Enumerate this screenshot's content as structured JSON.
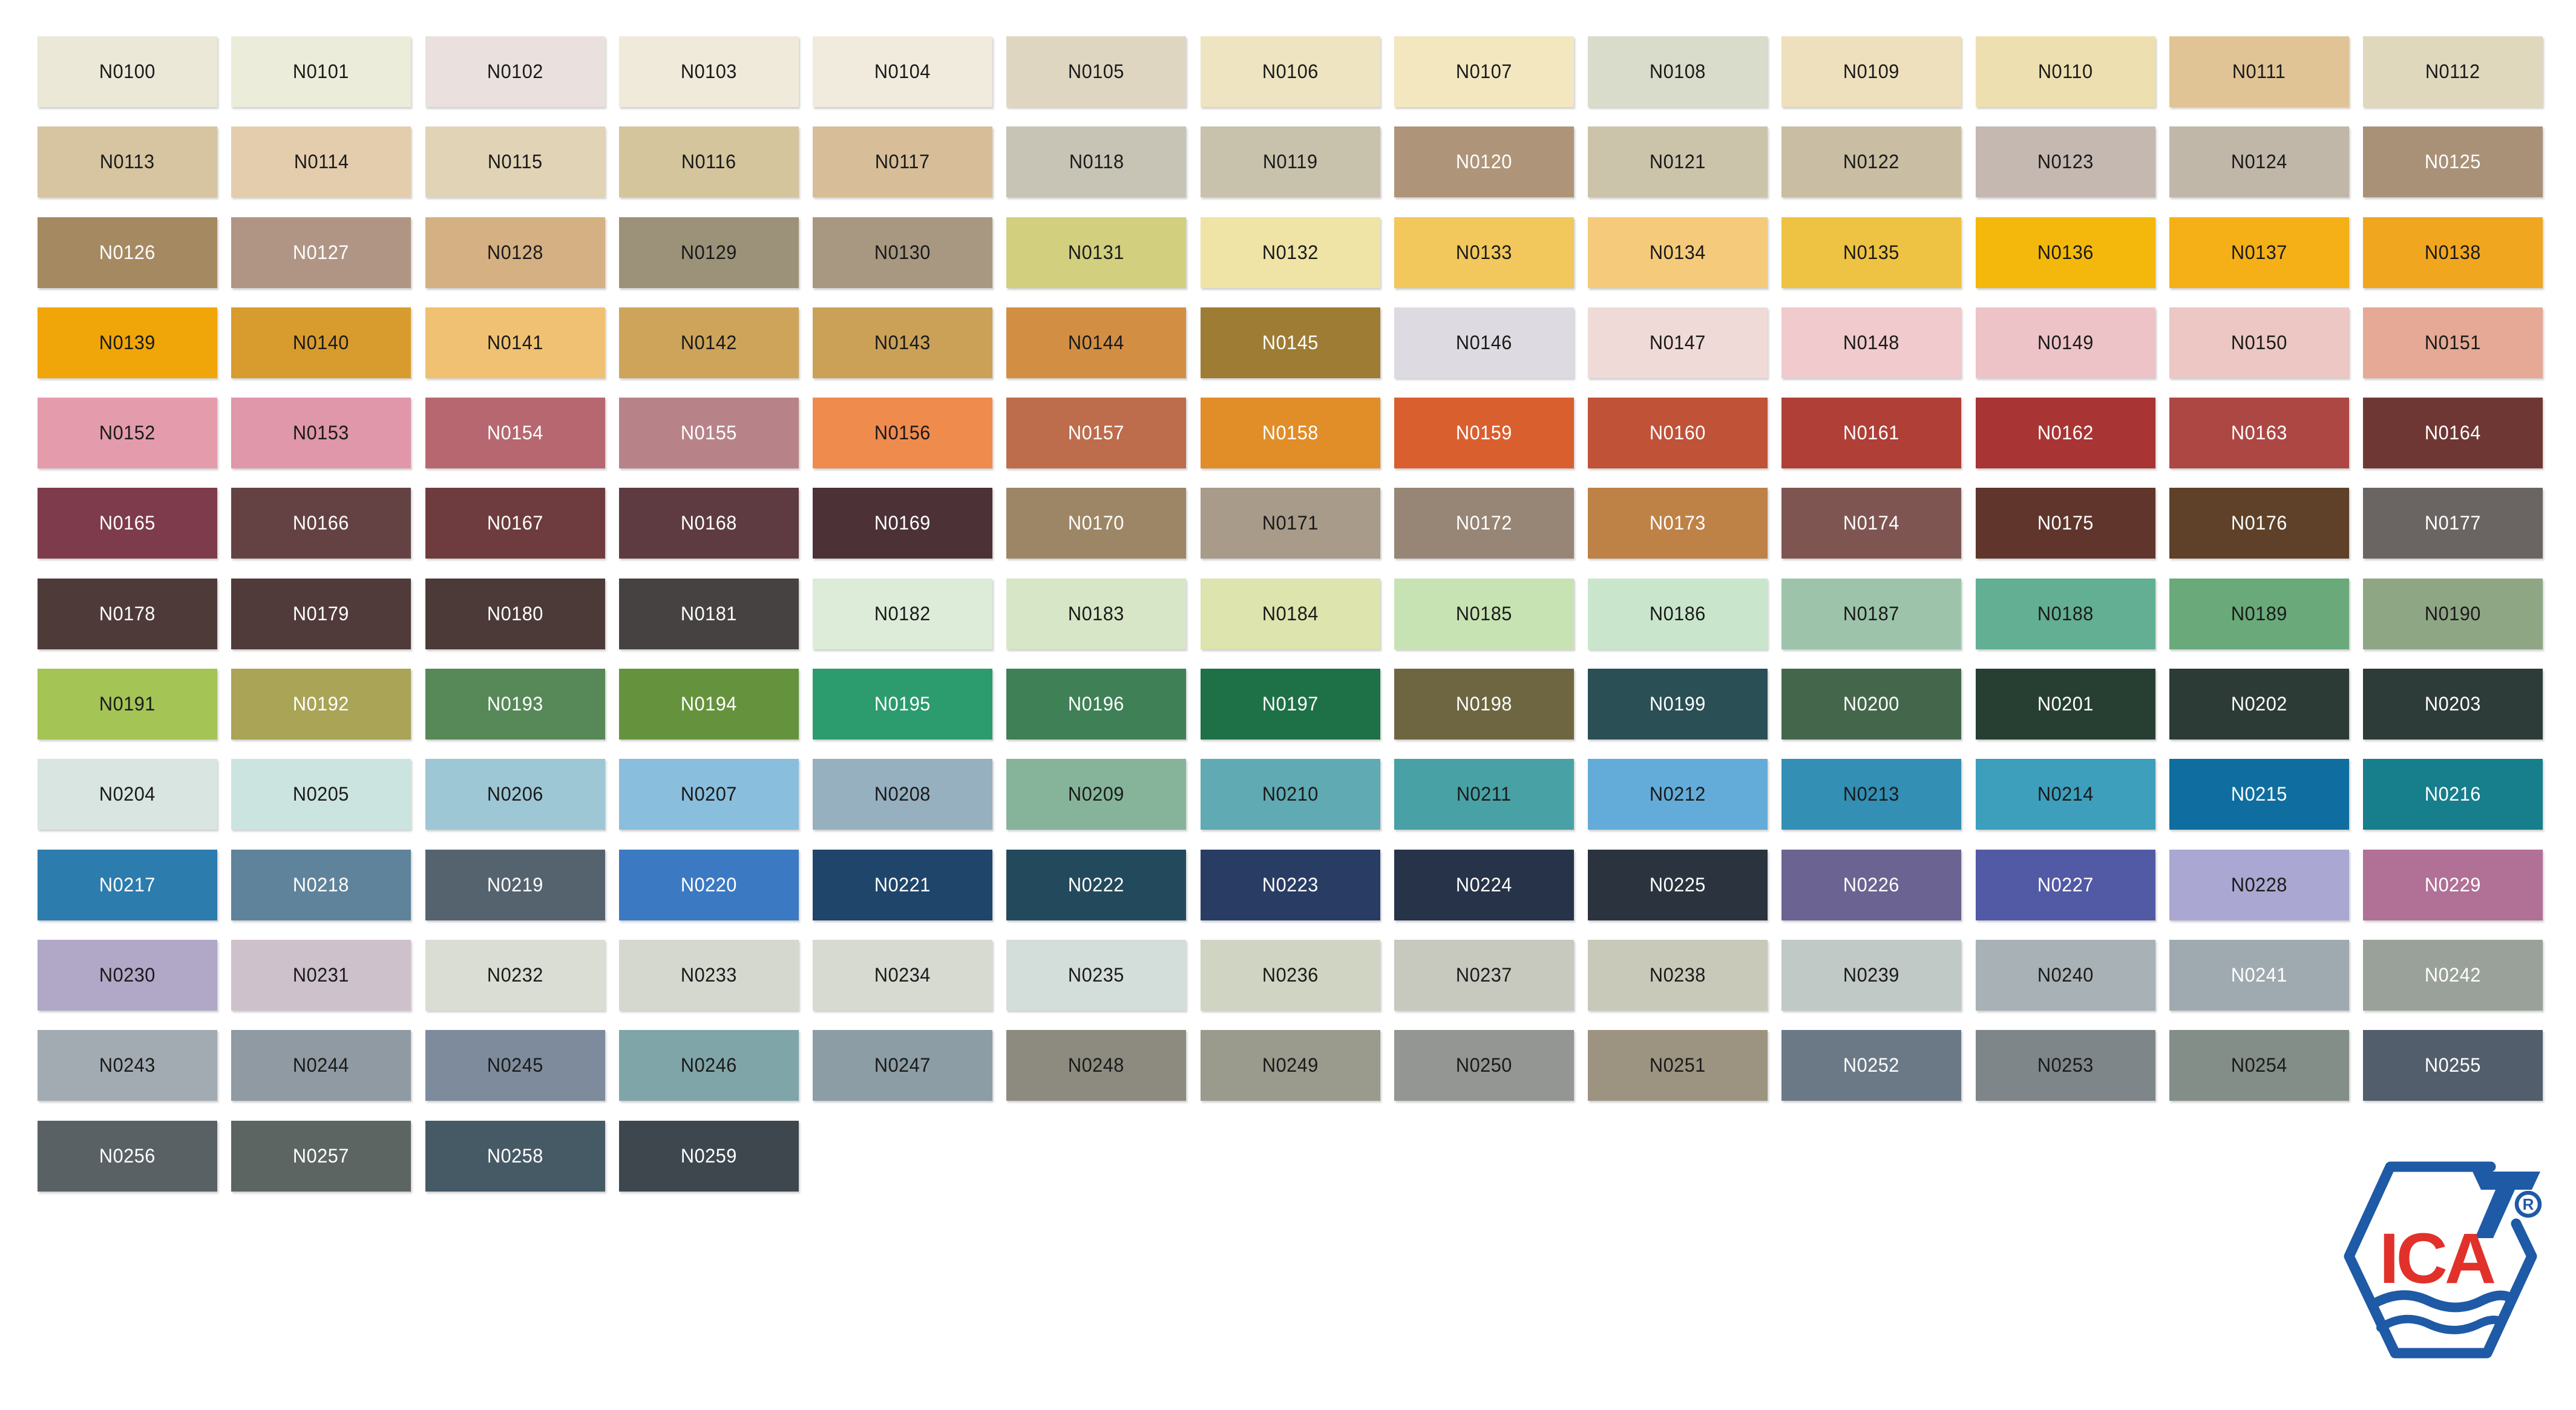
{
  "page": {
    "background": "#FFFFFF"
  },
  "grid": {
    "rows": 13,
    "cols": 13,
    "label_dark": "#1A1A1A",
    "label_light": "#FFFFFF"
  },
  "swatches": [
    {
      "code": "N0100",
      "bg": "#EBE8D8",
      "fg": "#1A1A1A"
    },
    {
      "code": "N0101",
      "bg": "#ECECDA",
      "fg": "#1A1A1A"
    },
    {
      "code": "N0102",
      "bg": "#EAE1DF",
      "fg": "#1A1A1A"
    },
    {
      "code": "N0103",
      "bg": "#F0EADB",
      "fg": "#1A1A1A"
    },
    {
      "code": "N0104",
      "bg": "#F1EBDD",
      "fg": "#1A1A1A"
    },
    {
      "code": "N0105",
      "bg": "#DFD6C2",
      "fg": "#1A1A1A"
    },
    {
      "code": "N0106",
      "bg": "#EEE4C1",
      "fg": "#1A1A1A"
    },
    {
      "code": "N0107",
      "bg": "#F3E7C0",
      "fg": "#1A1A1A"
    },
    {
      "code": "N0108",
      "bg": "#D9DBCB",
      "fg": "#1A1A1A"
    },
    {
      "code": "N0109",
      "bg": "#EFE0BD",
      "fg": "#1A1A1A"
    },
    {
      "code": "N0110",
      "bg": "#EDDFB0",
      "fg": "#1A1A1A"
    },
    {
      "code": "N0111",
      "bg": "#E1C495",
      "fg": "#1A1A1A"
    },
    {
      "code": "N0112",
      "bg": "#DFD8BD",
      "fg": "#1A1A1A"
    },
    {
      "code": "N0113",
      "bg": "#D6C5A0",
      "fg": "#1A1A1A"
    },
    {
      "code": "N0114",
      "bg": "#E4CDAD",
      "fg": "#1A1A1A"
    },
    {
      "code": "N0115",
      "bg": "#E1D3B5",
      "fg": "#1A1A1A"
    },
    {
      "code": "N0116",
      "bg": "#D4C59D",
      "fg": "#1A1A1A"
    },
    {
      "code": "N0117",
      "bg": "#D7BE98",
      "fg": "#1A1A1A"
    },
    {
      "code": "N0118",
      "bg": "#C7C3B5",
      "fg": "#1A1A1A"
    },
    {
      "code": "N0119",
      "bg": "#C8C1AC",
      "fg": "#1A1A1A"
    },
    {
      "code": "N0120",
      "bg": "#AE9579",
      "fg": "#FFFFFF"
    },
    {
      "code": "N0121",
      "bg": "#CCC3AB",
      "fg": "#1A1A1A"
    },
    {
      "code": "N0122",
      "bg": "#C9BDA3",
      "fg": "#1A1A1A"
    },
    {
      "code": "N0123",
      "bg": "#C4B8B1",
      "fg": "#1A1A1A"
    },
    {
      "code": "N0124",
      "bg": "#C0B7A9",
      "fg": "#1A1A1A"
    },
    {
      "code": "N0125",
      "bg": "#A99178",
      "fg": "#FFFFFF"
    },
    {
      "code": "N0126",
      "bg": "#A58961",
      "fg": "#FFFFFF"
    },
    {
      "code": "N0127",
      "bg": "#B09585",
      "fg": "#FFFFFF"
    },
    {
      "code": "N0128",
      "bg": "#D5B082",
      "fg": "#1A1A1A"
    },
    {
      "code": "N0129",
      "bg": "#9B9279",
      "fg": "#1A1A1A"
    },
    {
      "code": "N0130",
      "bg": "#A89781",
      "fg": "#1A1A1A"
    },
    {
      "code": "N0131",
      "bg": "#D2CF7F",
      "fg": "#1A1A1A"
    },
    {
      "code": "N0132",
      "bg": "#EFE4A6",
      "fg": "#1A1A1A"
    },
    {
      "code": "N0133",
      "bg": "#F2C85C",
      "fg": "#1A1A1A"
    },
    {
      "code": "N0134",
      "bg": "#F5CA7A",
      "fg": "#1A1A1A"
    },
    {
      "code": "N0135",
      "bg": "#EEC344",
      "fg": "#1A1A1A"
    },
    {
      "code": "N0136",
      "bg": "#F4B80C",
      "fg": "#1A1A1A"
    },
    {
      "code": "N0137",
      "bg": "#F5B017",
      "fg": "#1A1A1A"
    },
    {
      "code": "N0138",
      "bg": "#F1A620",
      "fg": "#1A1A1A"
    },
    {
      "code": "N0139",
      "bg": "#F0A508",
      "fg": "#1A1A1A"
    },
    {
      "code": "N0140",
      "bg": "#D89C2E",
      "fg": "#1A1A1A"
    },
    {
      "code": "N0141",
      "bg": "#F0C172",
      "fg": "#1A1A1A"
    },
    {
      "code": "N0142",
      "bg": "#CDA45A",
      "fg": "#1A1A1A"
    },
    {
      "code": "N0143",
      "bg": "#CBA158",
      "fg": "#1A1A1A"
    },
    {
      "code": "N0144",
      "bg": "#D28F44",
      "fg": "#1A1A1A"
    },
    {
      "code": "N0145",
      "bg": "#9E7C34",
      "fg": "#FFFFFF"
    },
    {
      "code": "N0146",
      "bg": "#DDDBE1",
      "fg": "#1A1A1A"
    },
    {
      "code": "N0147",
      "bg": "#F0DAD7",
      "fg": "#1A1A1A"
    },
    {
      "code": "N0148",
      "bg": "#F0CACC",
      "fg": "#1A1A1A"
    },
    {
      "code": "N0149",
      "bg": "#EDC3C7",
      "fg": "#1A1A1A"
    },
    {
      "code": "N0150",
      "bg": "#ECC7C3",
      "fg": "#1A1A1A"
    },
    {
      "code": "N0151",
      "bg": "#E5A995",
      "fg": "#1A1A1A"
    },
    {
      "code": "N0152",
      "bg": "#E49CAD",
      "fg": "#1A1A1A"
    },
    {
      "code": "N0153",
      "bg": "#DF97A9",
      "fg": "#1A1A1A"
    },
    {
      "code": "N0154",
      "bg": "#B6676F",
      "fg": "#FFFFFF"
    },
    {
      "code": "N0155",
      "bg": "#B78389",
      "fg": "#FFFFFF"
    },
    {
      "code": "N0156",
      "bg": "#F08B4E",
      "fg": "#1A1A1A"
    },
    {
      "code": "N0157",
      "bg": "#BD6C4C",
      "fg": "#FFFFFF"
    },
    {
      "code": "N0158",
      "bg": "#E18D28",
      "fg": "#FFFFFF"
    },
    {
      "code": "N0159",
      "bg": "#DA5F2F",
      "fg": "#FFFFFF"
    },
    {
      "code": "N0160",
      "bg": "#C05238",
      "fg": "#FFFFFF"
    },
    {
      "code": "N0161",
      "bg": "#AF3F37",
      "fg": "#FFFFFF"
    },
    {
      "code": "N0162",
      "bg": "#A93434",
      "fg": "#FFFFFF"
    },
    {
      "code": "N0163",
      "bg": "#AD4744",
      "fg": "#FFFFFF"
    },
    {
      "code": "N0164",
      "bg": "#6F3733",
      "fg": "#FFFFFF"
    },
    {
      "code": "N0165",
      "bg": "#7D3B4C",
      "fg": "#FFFFFF"
    },
    {
      "code": "N0166",
      "bg": "#644244",
      "fg": "#FFFFFF"
    },
    {
      "code": "N0167",
      "bg": "#6E3C3E",
      "fg": "#FFFFFF"
    },
    {
      "code": "N0168",
      "bg": "#5D3B40",
      "fg": "#FFFFFF"
    },
    {
      "code": "N0169",
      "bg": "#4C3137",
      "fg": "#FFFFFF"
    },
    {
      "code": "N0170",
      "bg": "#9D8666",
      "fg": "#FFFFFF"
    },
    {
      "code": "N0171",
      "bg": "#A89B89",
      "fg": "#1A1A1A"
    },
    {
      "code": "N0172",
      "bg": "#978675",
      "fg": "#FFFFFF"
    },
    {
      "code": "N0173",
      "bg": "#BE8146",
      "fg": "#FFFFFF"
    },
    {
      "code": "N0174",
      "bg": "#7F5552",
      "fg": "#FFFFFF"
    },
    {
      "code": "N0175",
      "bg": "#5F352C",
      "fg": "#FFFFFF"
    },
    {
      "code": "N0176",
      "bg": "#5E4128",
      "fg": "#FFFFFF"
    },
    {
      "code": "N0177",
      "bg": "#6A6463",
      "fg": "#FFFFFF"
    },
    {
      "code": "N0178",
      "bg": "#4E3B39",
      "fg": "#FFFFFF"
    },
    {
      "code": "N0179",
      "bg": "#503B3A",
      "fg": "#FFFFFF"
    },
    {
      "code": "N0180",
      "bg": "#4B3A38",
      "fg": "#FFFFFF"
    },
    {
      "code": "N0181",
      "bg": "#464241",
      "fg": "#FFFFFF"
    },
    {
      "code": "N0182",
      "bg": "#DDECD8",
      "fg": "#1A1A1A"
    },
    {
      "code": "N0183",
      "bg": "#D7E6C6",
      "fg": "#1A1A1A"
    },
    {
      "code": "N0184",
      "bg": "#DDE4AD",
      "fg": "#1A1A1A"
    },
    {
      "code": "N0185",
      "bg": "#C8E3B3",
      "fg": "#1A1A1A"
    },
    {
      "code": "N0186",
      "bg": "#C9E6CC",
      "fg": "#1A1A1A"
    },
    {
      "code": "N0187",
      "bg": "#9DC4AA",
      "fg": "#1A1A1A"
    },
    {
      "code": "N0188",
      "bg": "#63AF93",
      "fg": "#1A1A1A"
    },
    {
      "code": "N0189",
      "bg": "#6AA979",
      "fg": "#1A1A1A"
    },
    {
      "code": "N0190",
      "bg": "#8FA685",
      "fg": "#1A1A1A"
    },
    {
      "code": "N0191",
      "bg": "#A4C456",
      "fg": "#1A1A1A"
    },
    {
      "code": "N0192",
      "bg": "#A9A456",
      "fg": "#FFFFFF"
    },
    {
      "code": "N0193",
      "bg": "#568858",
      "fg": "#FFFFFF"
    },
    {
      "code": "N0194",
      "bg": "#65933D",
      "fg": "#FFFFFF"
    },
    {
      "code": "N0195",
      "bg": "#2C9B6E",
      "fg": "#FFFFFF"
    },
    {
      "code": "N0196",
      "bg": "#3F8056",
      "fg": "#FFFFFF"
    },
    {
      "code": "N0197",
      "bg": "#1E7047",
      "fg": "#FFFFFF"
    },
    {
      "code": "N0198",
      "bg": "#6E6640",
      "fg": "#FFFFFF"
    },
    {
      "code": "N0199",
      "bg": "#2A4F55",
      "fg": "#FFFFFF"
    },
    {
      "code": "N0200",
      "bg": "#44674C",
      "fg": "#FFFFFF"
    },
    {
      "code": "N0201",
      "bg": "#273F32",
      "fg": "#FFFFFF"
    },
    {
      "code": "N0202",
      "bg": "#2C3B35",
      "fg": "#FFFFFF"
    },
    {
      "code": "N0203",
      "bg": "#2D3C39",
      "fg": "#FFFFFF"
    },
    {
      "code": "N0204",
      "bg": "#D8E5E1",
      "fg": "#1A1A1A"
    },
    {
      "code": "N0205",
      "bg": "#CCE4DF",
      "fg": "#1A1A1A"
    },
    {
      "code": "N0206",
      "bg": "#9DC7D4",
      "fg": "#1A1A1A"
    },
    {
      "code": "N0207",
      "bg": "#8ABEDD",
      "fg": "#1A1A1A"
    },
    {
      "code": "N0208",
      "bg": "#96B0BF",
      "fg": "#1A1A1A"
    },
    {
      "code": "N0209",
      "bg": "#86B49A",
      "fg": "#1A1A1A"
    },
    {
      "code": "N0210",
      "bg": "#60AAB3",
      "fg": "#1A1A1A"
    },
    {
      "code": "N0211",
      "bg": "#48A1A5",
      "fg": "#1A1A1A"
    },
    {
      "code": "N0212",
      "bg": "#63ACD9",
      "fg": "#1A1A1A"
    },
    {
      "code": "N0213",
      "bg": "#338FB4",
      "fg": "#1A1A1A"
    },
    {
      "code": "N0214",
      "bg": "#3D9FBC",
      "fg": "#1A1A1A"
    },
    {
      "code": "N0215",
      "bg": "#0F6E9F",
      "fg": "#FFFFFF"
    },
    {
      "code": "N0216",
      "bg": "#177E8C",
      "fg": "#FFFFFF"
    },
    {
      "code": "N0217",
      "bg": "#2C7CAD",
      "fg": "#FFFFFF"
    },
    {
      "code": "N0218",
      "bg": "#5F839A",
      "fg": "#FFFFFF"
    },
    {
      "code": "N0219",
      "bg": "#55636F",
      "fg": "#FFFFFF"
    },
    {
      "code": "N0220",
      "bg": "#3B79C3",
      "fg": "#FFFFFF"
    },
    {
      "code": "N0221",
      "bg": "#1F456A",
      "fg": "#FFFFFF"
    },
    {
      "code": "N0222",
      "bg": "#234A5C",
      "fg": "#FFFFFF"
    },
    {
      "code": "N0223",
      "bg": "#283C64",
      "fg": "#FFFFFF"
    },
    {
      "code": "N0224",
      "bg": "#263349",
      "fg": "#FFFFFF"
    },
    {
      "code": "N0225",
      "bg": "#2B343E",
      "fg": "#FFFFFF"
    },
    {
      "code": "N0226",
      "bg": "#6B6391",
      "fg": "#FFFFFF"
    },
    {
      "code": "N0227",
      "bg": "#5259A5",
      "fg": "#FFFFFF"
    },
    {
      "code": "N0228",
      "bg": "#AAA7D2",
      "fg": "#1A1A1A"
    },
    {
      "code": "N0229",
      "bg": "#B17096",
      "fg": "#FFFFFF"
    },
    {
      "code": "N0230",
      "bg": "#B1A7C7",
      "fg": "#1A1A1A"
    },
    {
      "code": "N0231",
      "bg": "#CDC1CB",
      "fg": "#1A1A1A"
    },
    {
      "code": "N0232",
      "bg": "#D9DDD3",
      "fg": "#1A1A1A"
    },
    {
      "code": "N0233",
      "bg": "#D5D8CE",
      "fg": "#1A1A1A"
    },
    {
      "code": "N0234",
      "bg": "#D7DAD1",
      "fg": "#1A1A1A"
    },
    {
      "code": "N0235",
      "bg": "#D3DEDA",
      "fg": "#1A1A1A"
    },
    {
      "code": "N0236",
      "bg": "#D0D5C3",
      "fg": "#1A1A1A"
    },
    {
      "code": "N0237",
      "bg": "#C7C9BF",
      "fg": "#1A1A1A"
    },
    {
      "code": "N0238",
      "bg": "#C8C9B9",
      "fg": "#1A1A1A"
    },
    {
      "code": "N0239",
      "bg": "#C1C9C6",
      "fg": "#1A1A1A"
    },
    {
      "code": "N0240",
      "bg": "#A8B1B5",
      "fg": "#1A1A1A"
    },
    {
      "code": "N0241",
      "bg": "#9FAAB0",
      "fg": "#FFFFFF"
    },
    {
      "code": "N0242",
      "bg": "#9AA19A",
      "fg": "#FFFFFF"
    },
    {
      "code": "N0243",
      "bg": "#A3ABB2",
      "fg": "#1A1A1A"
    },
    {
      "code": "N0244",
      "bg": "#909AA3",
      "fg": "#1A1A1A"
    },
    {
      "code": "N0245",
      "bg": "#7D8B9C",
      "fg": "#1A1A1A"
    },
    {
      "code": "N0246",
      "bg": "#80A5A9",
      "fg": "#1A1A1A"
    },
    {
      "code": "N0247",
      "bg": "#8D9DA5",
      "fg": "#1A1A1A"
    },
    {
      "code": "N0248",
      "bg": "#8D8B7F",
      "fg": "#1A1A1A"
    },
    {
      "code": "N0249",
      "bg": "#9A9B8D",
      "fg": "#1A1A1A"
    },
    {
      "code": "N0250",
      "bg": "#939692",
      "fg": "#1A1A1A"
    },
    {
      "code": "N0251",
      "bg": "#9C9480",
      "fg": "#1A1A1A"
    },
    {
      "code": "N0252",
      "bg": "#6B7886",
      "fg": "#FFFFFF"
    },
    {
      "code": "N0253",
      "bg": "#7E8689",
      "fg": "#1A1A1A"
    },
    {
      "code": "N0254",
      "bg": "#848E88",
      "fg": "#1A1A1A"
    },
    {
      "code": "N0255",
      "bg": "#525E6B",
      "fg": "#FFFFFF"
    },
    {
      "code": "N0256",
      "bg": "#596165",
      "fg": "#FFFFFF"
    },
    {
      "code": "N0257",
      "bg": "#5D6562",
      "fg": "#FFFFFF"
    },
    {
      "code": "N0258",
      "bg": "#465A66",
      "fg": "#FFFFFF"
    },
    {
      "code": "N0259",
      "bg": "#3F474E",
      "fg": "#FFFFFF"
    }
  ],
  "logo": {
    "name": "ICA",
    "registered_mark": "R",
    "blue": "#1E5AA6",
    "red": "#E1312A"
  }
}
